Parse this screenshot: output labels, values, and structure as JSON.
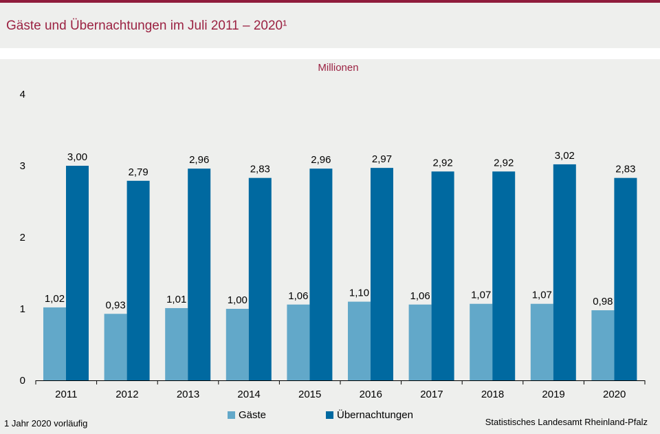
{
  "header": {
    "title": "Gäste und Übernachtungen im Juli 2011 – 2020¹",
    "unit": "Millionen"
  },
  "footer": {
    "footnote": "1 Jahr 2020 vorläufig",
    "source": "Statistisches Landesamt  Rheinland-Pfalz"
  },
  "colors": {
    "accent": "#9b2242",
    "gaeste": "#62a8c9",
    "uebernachtungen": "#0069a0"
  },
  "chart_data": {
    "type": "bar",
    "title": "Gäste und Übernachtungen im Juli 2011 – 2020¹",
    "ylabel": "Millionen",
    "xlabel": "",
    "ylim": [
      0,
      4
    ],
    "yticks": [
      "0",
      "1",
      "2",
      "3",
      "4"
    ],
    "categories": [
      "2011",
      "2012",
      "2013",
      "2014",
      "2015",
      "2016",
      "2017",
      "2018",
      "2019",
      "2020"
    ],
    "series": [
      {
        "name": "Gäste",
        "values": [
          1.02,
          0.93,
          1.01,
          1.0,
          1.06,
          1.1,
          1.06,
          1.07,
          1.07,
          0.98
        ],
        "labels": [
          "1,02",
          "0,93",
          "1,01",
          "1,00",
          "1,06",
          "1,10",
          "1,06",
          "1,07",
          "1,07",
          "0,98"
        ]
      },
      {
        "name": "Übernachtungen",
        "values": [
          3.0,
          2.79,
          2.96,
          2.83,
          2.96,
          2.97,
          2.92,
          2.92,
          3.02,
          2.83
        ],
        "labels": [
          "3,00",
          "2,79",
          "2,96",
          "2,83",
          "2,96",
          "2,97",
          "2,92",
          "2,92",
          "3,02",
          "2,83"
        ]
      }
    ],
    "grid": false,
    "legend": "bottom"
  }
}
